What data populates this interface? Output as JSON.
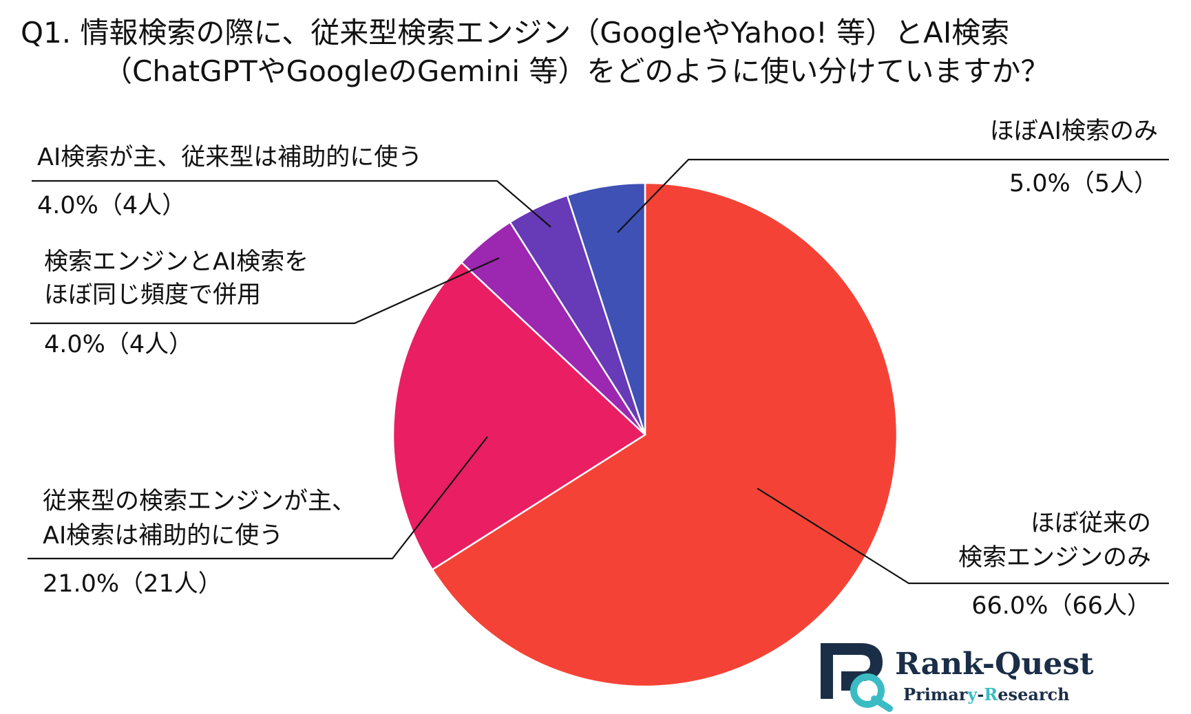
{
  "title": {
    "line1": "Q1. 情報検索の際に、従来型検索エンジン（GoogleやYahoo! 等）とAI検索",
    "line2": "（ChatGPTやGoogleのGemini 等）をどのように使い分けていますか？"
  },
  "chart_data": {
    "type": "pie",
    "start_angle_deg": 0,
    "direction": "clockwise",
    "slices": [
      {
        "label_lines": [
          "ほぼ従来の",
          "検索エンジンのみ"
        ],
        "value": 66.0,
        "value_text": "66.0%（66人）",
        "color": "#f44336"
      },
      {
        "label_lines": [
          "従来型の検索エンジンが主、",
          "AI検索は補助的に使う"
        ],
        "value": 21.0,
        "value_text": "21.0%（21人）",
        "color": "#e91e63"
      },
      {
        "label_lines": [
          "検索エンジンとAI検索を",
          "ほぼ同じ頻度で併用"
        ],
        "value": 4.0,
        "value_text": "4.0%（4人）",
        "color": "#9c27b0"
      },
      {
        "label_lines": [
          "AI検索が主、従来型は補助的に使う"
        ],
        "value": 4.0,
        "value_text": "4.0%（4人）",
        "color": "#673ab7"
      },
      {
        "label_lines": [
          "ほぼAI検索のみ"
        ],
        "value": 5.0,
        "value_text": "5.0%（5人）",
        "color": "#3f51b5"
      }
    ]
  },
  "logo": {
    "brand_prefix": "Rank-",
    "brand_suffix": "Quest",
    "sub_prefix": "Primar",
    "sub_accent1": "y",
    "sub_middle": "-",
    "sub_accent2": "R",
    "sub_suffix": "esearch",
    "colors": {
      "dark": "#1b2e47",
      "accent": "#3bbcc4"
    }
  }
}
